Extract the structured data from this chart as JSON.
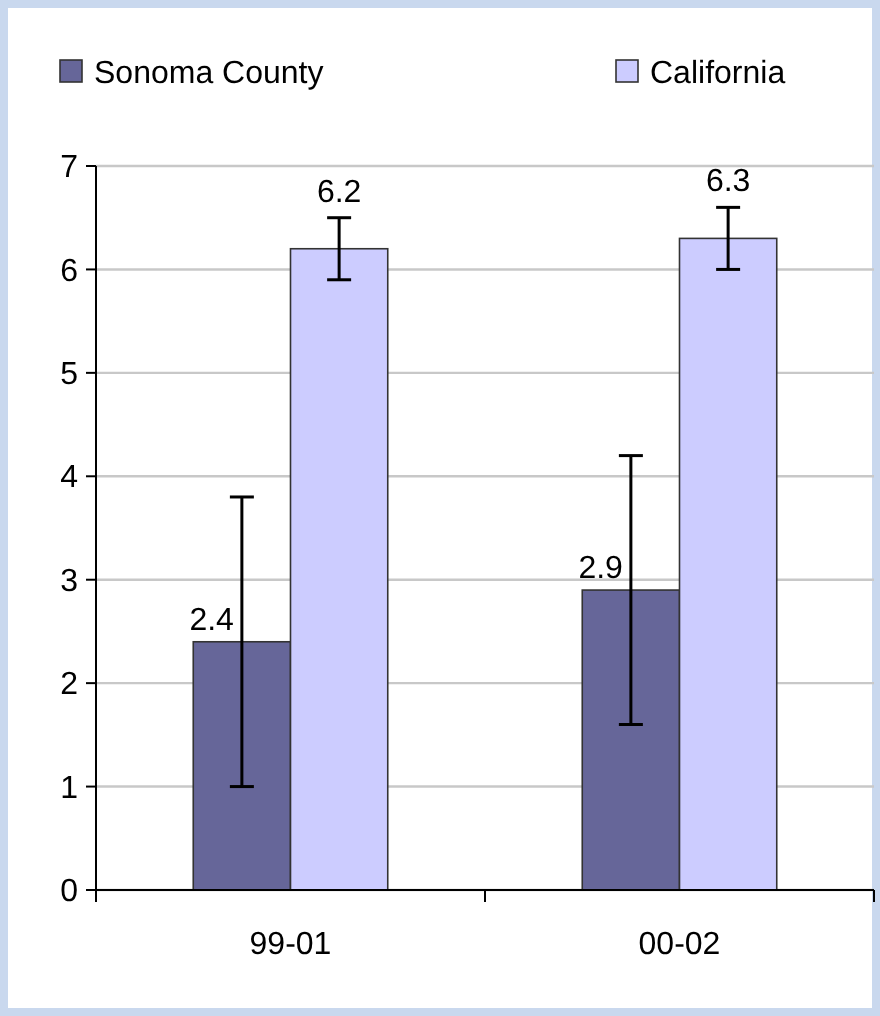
{
  "chart_data": {
    "type": "bar",
    "categories": [
      "99-01",
      "00-02"
    ],
    "series": [
      {
        "name": "Sonoma County",
        "color": "#666699",
        "values": [
          2.4,
          2.9
        ],
        "errors": [
          1.4,
          1.3
        ]
      },
      {
        "name": "California",
        "color": "#ccccff",
        "values": [
          6.2,
          6.3
        ],
        "errors": [
          0.3,
          0.3
        ]
      }
    ],
    "ylim": [
      0,
      7
    ],
    "yticks": [
      0,
      1,
      2,
      3,
      4,
      5,
      6,
      7
    ],
    "grid": "y",
    "legend": "top",
    "data_labels": true
  }
}
